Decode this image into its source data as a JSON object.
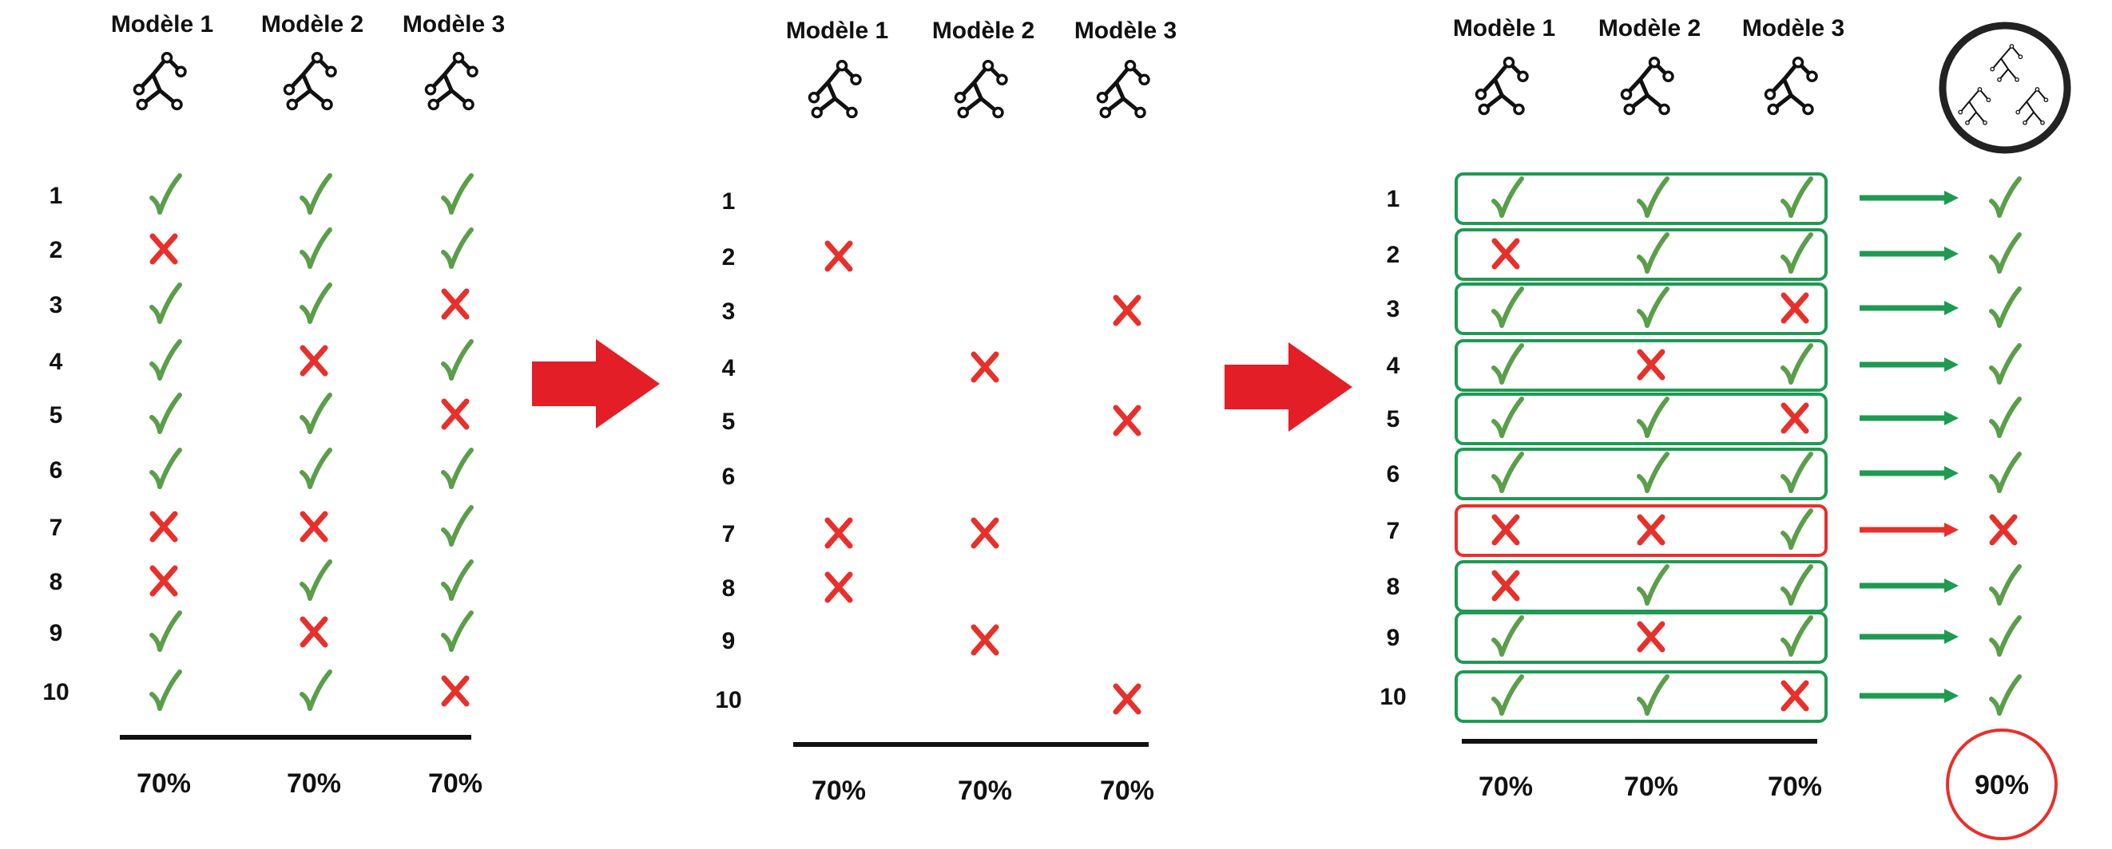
{
  "colors": {
    "check": "#5a9e4a",
    "cross": "#e8302b",
    "box_ok": "#1e9a52",
    "box_bad": "#e8302b",
    "arrow_ok": "#1e9a52",
    "arrow_bad": "#e8302b",
    "flow_arrow": "#e41e26",
    "ink": "#111111"
  },
  "models": [
    "Modèle 1",
    "Modèle 2",
    "Modèle 3"
  ],
  "rows": [
    "1",
    "2",
    "3",
    "4",
    "5",
    "6",
    "7",
    "8",
    "9",
    "10"
  ],
  "predictions": [
    [
      true,
      true,
      true
    ],
    [
      false,
      true,
      true
    ],
    [
      true,
      true,
      false
    ],
    [
      true,
      false,
      true
    ],
    [
      true,
      true,
      false
    ],
    [
      true,
      true,
      true
    ],
    [
      false,
      false,
      true
    ],
    [
      false,
      true,
      true
    ],
    [
      true,
      false,
      true
    ],
    [
      true,
      true,
      false
    ]
  ],
  "ensemble": [
    true,
    true,
    true,
    true,
    true,
    true,
    false,
    true,
    true,
    true
  ],
  "accuracies": [
    "70%",
    "70%",
    "70%"
  ],
  "ensemble_accuracy": "90%",
  "icons": {
    "model": "decision-tree-icon",
    "ensemble": "random-forest-icon",
    "flow": "right-arrow-icon"
  }
}
